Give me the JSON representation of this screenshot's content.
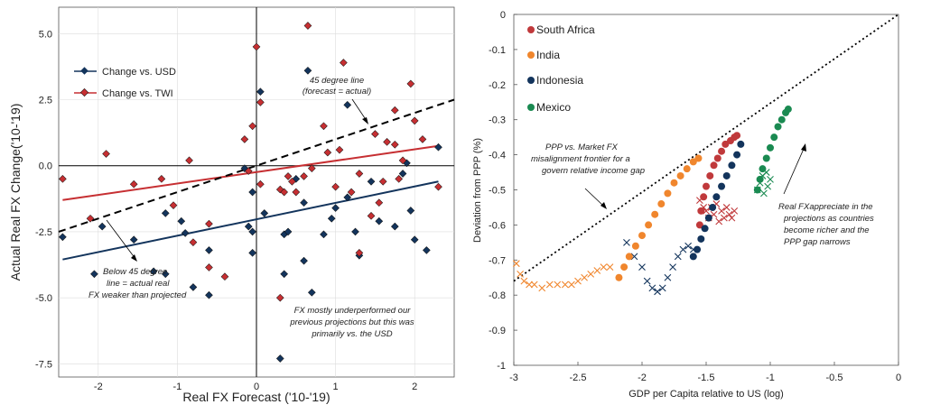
{
  "chart_data": [
    {
      "type": "scatter",
      "xlabel": "Real FX Forecast ('10-'19)",
      "ylabel": "Actual Real FX Change('10-'19)",
      "xlim": [
        -2.5,
        2.5
      ],
      "ylim": [
        -8.0,
        6.0
      ],
      "xticks": [
        -2,
        -1,
        0,
        1,
        2
      ],
      "xtick_labels": [
        "-2",
        "-1",
        "0",
        "1",
        "2"
      ],
      "yticks": [
        -7.5,
        -5.0,
        -2.5,
        0.0,
        2.5,
        5.0
      ],
      "ytick_labels": [
        "-7.5",
        "-5.0",
        "-2.5",
        "0.0",
        "2.5",
        "5.0"
      ],
      "grid": true,
      "legend_position": "upper-left",
      "series": [
        {
          "name": "Change vs. USD",
          "color": "#13345c",
          "points": [
            [
              -2.45,
              -2.7
            ],
            [
              -2.05,
              -4.1
            ],
            [
              -1.95,
              -2.3
            ],
            [
              -1.55,
              -2.8
            ],
            [
              -1.3,
              -4.0
            ],
            [
              -1.15,
              -4.1
            ],
            [
              -1.15,
              -1.8
            ],
            [
              -0.95,
              -2.1
            ],
            [
              -0.9,
              -2.55
            ],
            [
              -0.8,
              -4.6
            ],
            [
              -0.6,
              -3.2
            ],
            [
              -0.6,
              -4.9
            ],
            [
              -0.15,
              -0.1
            ],
            [
              -0.1,
              -2.3
            ],
            [
              -0.05,
              -2.5
            ],
            [
              -0.05,
              -3.3
            ],
            [
              -0.05,
              -1.0
            ],
            [
              0.05,
              2.8
            ],
            [
              0.1,
              -1.8
            ],
            [
              0.3,
              -7.3
            ],
            [
              0.35,
              -2.6
            ],
            [
              0.35,
              -4.1
            ],
            [
              0.4,
              -2.5
            ],
            [
              0.5,
              -0.5
            ],
            [
              0.6,
              -3.6
            ],
            [
              0.6,
              -1.4
            ],
            [
              0.65,
              3.6
            ],
            [
              0.7,
              -4.8
            ],
            [
              0.85,
              -2.6
            ],
            [
              0.95,
              -2.0
            ],
            [
              1.0,
              -1.6
            ],
            [
              1.15,
              -1.2
            ],
            [
              1.15,
              2.3
            ],
            [
              1.25,
              -2.5
            ],
            [
              1.3,
              -3.4
            ],
            [
              1.45,
              -0.6
            ],
            [
              1.55,
              -2.1
            ],
            [
              1.75,
              -2.3
            ],
            [
              1.85,
              -0.3
            ],
            [
              1.9,
              0.1
            ],
            [
              1.95,
              -1.7
            ],
            [
              2.0,
              -2.8
            ],
            [
              2.15,
              -3.2
            ],
            [
              2.3,
              0.7
            ]
          ]
        },
        {
          "name": "Change vs. TWI",
          "color": "#c62f32",
          "points": [
            [
              -2.45,
              -0.5
            ],
            [
              -2.1,
              -2.0
            ],
            [
              -1.9,
              0.45
            ],
            [
              -1.55,
              -0.7
            ],
            [
              -1.2,
              -0.5
            ],
            [
              -1.05,
              -1.5
            ],
            [
              -0.85,
              0.2
            ],
            [
              -0.8,
              -2.9
            ],
            [
              -0.6,
              -2.2
            ],
            [
              -0.6,
              -3.85
            ],
            [
              -0.4,
              -4.2
            ],
            [
              -0.15,
              1.0
            ],
            [
              -0.1,
              -0.2
            ],
            [
              -0.05,
              1.5
            ],
            [
              0.0,
              4.5
            ],
            [
              0.05,
              2.4
            ],
            [
              0.05,
              -0.7
            ],
            [
              0.3,
              -5.0
            ],
            [
              0.3,
              -0.9
            ],
            [
              0.35,
              -1.0
            ],
            [
              0.4,
              -0.4
            ],
            [
              0.45,
              -0.6
            ],
            [
              0.5,
              -1.0
            ],
            [
              0.6,
              -0.4
            ],
            [
              0.65,
              5.3
            ],
            [
              0.7,
              -0.1
            ],
            [
              0.85,
              1.5
            ],
            [
              0.9,
              0.5
            ],
            [
              1.0,
              -0.8
            ],
            [
              1.05,
              0.6
            ],
            [
              1.1,
              3.9
            ],
            [
              1.2,
              -1.0
            ],
            [
              1.3,
              -0.3
            ],
            [
              1.3,
              -3.3
            ],
            [
              1.45,
              -1.9
            ],
            [
              1.5,
              1.2
            ],
            [
              1.55,
              -1.4
            ],
            [
              1.6,
              -0.6
            ],
            [
              1.65,
              0.9
            ],
            [
              1.75,
              2.1
            ],
            [
              1.75,
              0.8
            ],
            [
              1.8,
              -0.5
            ],
            [
              1.85,
              0.2
            ],
            [
              1.95,
              3.1
            ],
            [
              2.0,
              1.7
            ],
            [
              2.1,
              1.0
            ],
            [
              2.3,
              -0.8
            ]
          ]
        }
      ],
      "lines": [
        {
          "name": "Change vs. USD fit",
          "color": "#13345c",
          "points": [
            [
              -2.45,
              -3.55
            ],
            [
              2.3,
              -0.6
            ]
          ]
        },
        {
          "name": "Change vs. TWI fit",
          "color": "#c62f32",
          "points": [
            [
              -2.45,
              -1.3
            ],
            [
              2.3,
              0.75
            ]
          ]
        },
        {
          "name": "45 degree line",
          "color": "#000000",
          "style": "dashed",
          "points": [
            [
              -2.5,
              -2.5
            ],
            [
              2.5,
              2.5
            ]
          ]
        }
      ],
      "annotations": [
        {
          "lines": [
            "45 degree line",
            "(forecast = actual)"
          ]
        },
        {
          "lines": [
            "Below 45 degree",
            "line = actual real",
            "FX weaker than projected"
          ]
        },
        {
          "lines": [
            "FX mostly underperformed our",
            "previous projections but this was",
            "primarily vs. the USD"
          ]
        }
      ]
    },
    {
      "type": "scatter",
      "xlabel": "GDP per Capita relative to US (log)",
      "ylabel": "Deviation from PPP (%)",
      "xlim": [
        -3.0,
        0.0
      ],
      "ylim": [
        -1.0,
        0.0
      ],
      "xticks": [
        -3,
        -2.5,
        -2,
        -1.5,
        -1,
        -0.5,
        0
      ],
      "xtick_labels": [
        "-3",
        "-2.5",
        "-2",
        "-1.5",
        "-1",
        "-0.5",
        "0"
      ],
      "yticks": [
        0,
        -0.1,
        -0.2,
        -0.3,
        -0.4,
        -0.5,
        -0.6,
        -0.7,
        -0.8,
        -0.9,
        -1
      ],
      "ytick_labels": [
        "0",
        "-0.1",
        "-0.2",
        "-0.3",
        "-0.4",
        "-0.5",
        "-0.6",
        "-0.7",
        "-0.8",
        "-0.9",
        "-1"
      ],
      "grid": false,
      "legend_position": "upper-left",
      "series": [
        {
          "name": "South Africa",
          "color": "#c0393b",
          "projection": [
            [
              -1.55,
              -0.6
            ],
            [
              -1.54,
              -0.56
            ],
            [
              -1.52,
              -0.52
            ],
            [
              -1.5,
              -0.49
            ],
            [
              -1.47,
              -0.46
            ],
            [
              -1.44,
              -0.43
            ],
            [
              -1.41,
              -0.41
            ],
            [
              -1.38,
              -0.39
            ],
            [
              -1.35,
              -0.37
            ],
            [
              -1.31,
              -0.36
            ],
            [
              -1.28,
              -0.35
            ],
            [
              -1.26,
              -0.345
            ]
          ],
          "historical": [
            [
              -1.55,
              -0.53
            ],
            [
              -1.52,
              -0.55
            ],
            [
              -1.5,
              -0.56
            ],
            [
              -1.48,
              -0.58
            ],
            [
              -1.46,
              -0.55
            ],
            [
              -1.44,
              -0.57
            ],
            [
              -1.42,
              -0.54
            ],
            [
              -1.4,
              -0.59
            ],
            [
              -1.38,
              -0.56
            ],
            [
              -1.36,
              -0.58
            ],
            [
              -1.34,
              -0.55
            ],
            [
              -1.32,
              -0.57
            ],
            [
              -1.3,
              -0.58
            ],
            [
              -1.28,
              -0.56
            ]
          ]
        },
        {
          "name": "India",
          "color": "#f0862d",
          "projection": [
            [
              -2.18,
              -0.75
            ],
            [
              -2.14,
              -0.72
            ],
            [
              -2.1,
              -0.69
            ],
            [
              -2.05,
              -0.66
            ],
            [
              -2.0,
              -0.63
            ],
            [
              -1.95,
              -0.6
            ],
            [
              -1.9,
              -0.57
            ],
            [
              -1.85,
              -0.54
            ],
            [
              -1.8,
              -0.51
            ],
            [
              -1.75,
              -0.48
            ],
            [
              -1.7,
              -0.46
            ],
            [
              -1.65,
              -0.44
            ],
            [
              -1.6,
              -0.42
            ],
            [
              -1.56,
              -0.41
            ]
          ],
          "historical": [
            [
              -2.98,
              -0.71
            ],
            [
              -2.95,
              -0.74
            ],
            [
              -2.92,
              -0.76
            ],
            [
              -2.88,
              -0.77
            ],
            [
              -2.84,
              -0.77
            ],
            [
              -2.78,
              -0.78
            ],
            [
              -2.72,
              -0.77
            ],
            [
              -2.66,
              -0.77
            ],
            [
              -2.6,
              -0.77
            ],
            [
              -2.55,
              -0.77
            ],
            [
              -2.5,
              -0.76
            ],
            [
              -2.45,
              -0.75
            ],
            [
              -2.4,
              -0.74
            ],
            [
              -2.35,
              -0.73
            ],
            [
              -2.3,
              -0.72
            ],
            [
              -2.25,
              -0.72
            ]
          ]
        },
        {
          "name": "Indonesia",
          "color": "#13345c",
          "projection": [
            [
              -1.6,
              -0.69
            ],
            [
              -1.57,
              -0.67
            ],
            [
              -1.54,
              -0.64
            ],
            [
              -1.51,
              -0.61
            ],
            [
              -1.48,
              -0.58
            ],
            [
              -1.45,
              -0.55
            ],
            [
              -1.42,
              -0.52
            ],
            [
              -1.38,
              -0.49
            ],
            [
              -1.34,
              -0.46
            ],
            [
              -1.3,
              -0.43
            ],
            [
              -1.26,
              -0.4
            ],
            [
              -1.23,
              -0.37
            ]
          ],
          "historical": [
            [
              -2.12,
              -0.65
            ],
            [
              -2.06,
              -0.69
            ],
            [
              -2.0,
              -0.72
            ],
            [
              -1.96,
              -0.76
            ],
            [
              -1.92,
              -0.78
            ],
            [
              -1.88,
              -0.79
            ],
            [
              -1.84,
              -0.78
            ],
            [
              -1.8,
              -0.75
            ],
            [
              -1.76,
              -0.72
            ],
            [
              -1.72,
              -0.69
            ],
            [
              -1.68,
              -0.67
            ],
            [
              -1.64,
              -0.66
            ],
            [
              -1.6,
              -0.67
            ]
          ]
        },
        {
          "name": "Mexico",
          "color": "#1a8a51",
          "projection": [
            [
              -1.1,
              -0.5
            ],
            [
              -1.08,
              -0.47
            ],
            [
              -1.06,
              -0.44
            ],
            [
              -1.03,
              -0.41
            ],
            [
              -1.0,
              -0.38
            ],
            [
              -0.97,
              -0.35
            ],
            [
              -0.94,
              -0.32
            ],
            [
              -0.91,
              -0.3
            ],
            [
              -0.88,
              -0.28
            ],
            [
              -0.86,
              -0.27
            ]
          ],
          "historical": [
            [
              -1.1,
              -0.5
            ],
            [
              -1.08,
              -0.48
            ],
            [
              -1.06,
              -0.46
            ],
            [
              -1.05,
              -0.51
            ],
            [
              -1.03,
              -0.45
            ],
            [
              -1.02,
              -0.49
            ],
            [
              -1.0,
              -0.47
            ]
          ]
        }
      ],
      "lines": [
        {
          "name": "PPP frontier",
          "color": "#000000",
          "style": "dotted",
          "points": [
            [
              -3.0,
              -0.76
            ],
            [
              0.0,
              0.0
            ]
          ]
        }
      ],
      "annotations": [
        {
          "lines": [
            "PPP vs. Market FX",
            "misalignment frontier for a",
            "govern relative income gap"
          ]
        },
        {
          "lines": [
            "Real FXappreciate in the",
            "projections as countries",
            "become richer and the",
            "PPP gap narrows"
          ]
        }
      ]
    }
  ]
}
